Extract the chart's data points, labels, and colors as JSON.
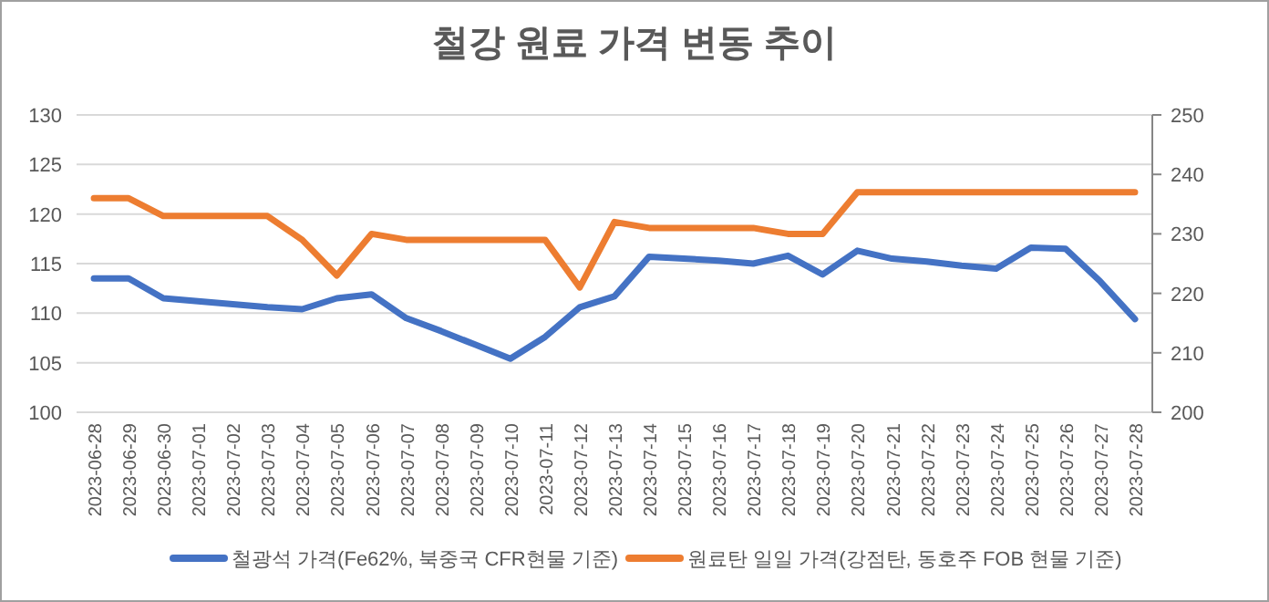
{
  "chart_data": {
    "type": "line",
    "title": "철강 원료 가격 변동 추이",
    "categories": [
      "2023-06-28",
      "2023-06-29",
      "2023-06-30",
      "2023-07-01",
      "2023-07-02",
      "2023-07-03",
      "2023-07-04",
      "2023-07-05",
      "2023-07-06",
      "2023-07-07",
      "2023-07-08",
      "2023-07-09",
      "2023-07-10",
      "2023-07-11",
      "2023-07-12",
      "2023-07-13",
      "2023-07-14",
      "2023-07-15",
      "2023-07-16",
      "2023-07-17",
      "2023-07-18",
      "2023-07-19",
      "2023-07-20",
      "2023-07-21",
      "2023-07-22",
      "2023-07-23",
      "2023-07-24",
      "2023-07-25",
      "2023-07-26",
      "2023-07-27",
      "2023-07-28"
    ],
    "series": [
      {
        "name": "철광석 가격(Fe62%, 북중국 CFR현물 기준)",
        "color": "#4472c4",
        "values": [
          113.5,
          113.5,
          111.5,
          111.2,
          110.9,
          110.6,
          110.4,
          111.5,
          111.9,
          109.5,
          108.2,
          106.8,
          105.4,
          107.6,
          110.6,
          111.7,
          115.7,
          115.5,
          115.3,
          115.0,
          115.8,
          113.9,
          116.3,
          115.5,
          115.2,
          114.8,
          114.5,
          116.6,
          116.5,
          113.2,
          109.4
        ]
      },
      {
        "name": "원료탄 일일 가격(강점탄, 동호주 FOB 현물 기준)",
        "color": "#ed7d31",
        "axis": "y2",
        "values": [
          236,
          236,
          233,
          233,
          233,
          233,
          229,
          223,
          230,
          229,
          229,
          229,
          229,
          229,
          221,
          232,
          231,
          231,
          231,
          231,
          230,
          230,
          237,
          237,
          237,
          237,
          237,
          237,
          237,
          237,
          237
        ]
      }
    ],
    "ylim": [
      100,
      130
    ],
    "yticks": [
      100,
      105,
      110,
      115,
      120,
      125,
      130
    ],
    "y2lim": [
      200,
      250
    ],
    "y2ticks": [
      200,
      210,
      220,
      230,
      240,
      250
    ],
    "grid": "y",
    "legend": "bottom",
    "marker": "none",
    "line_style": "solid"
  }
}
